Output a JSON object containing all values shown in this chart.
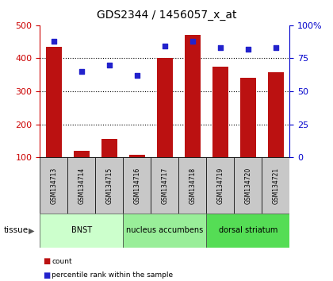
{
  "title": "GDS2344 / 1456057_x_at",
  "samples": [
    "GSM134713",
    "GSM134714",
    "GSM134715",
    "GSM134716",
    "GSM134717",
    "GSM134718",
    "GSM134719",
    "GSM134720",
    "GSM134721"
  ],
  "counts": [
    435,
    120,
    155,
    107,
    400,
    470,
    375,
    340,
    358
  ],
  "percentiles": [
    88,
    65,
    70,
    62,
    84,
    88,
    83,
    82,
    83
  ],
  "bar_color": "#bb1111",
  "dot_color": "#2222cc",
  "ylim_left": [
    100,
    500
  ],
  "ylim_right": [
    0,
    100
  ],
  "yticks_left": [
    100,
    200,
    300,
    400,
    500
  ],
  "yticks_right": [
    0,
    25,
    50,
    75,
    100
  ],
  "yticklabels_right": [
    "0",
    "25",
    "50",
    "75",
    "100%"
  ],
  "gridlines": [
    200,
    300,
    400
  ],
  "groups": [
    {
      "label": "BNST",
      "start": 0,
      "end": 3,
      "color": "#ccffcc"
    },
    {
      "label": "nucleus accumbens",
      "start": 3,
      "end": 6,
      "color": "#99ee99"
    },
    {
      "label": "dorsal striatum",
      "start": 6,
      "end": 9,
      "color": "#55dd55"
    }
  ],
  "tissue_label": "tissue",
  "legend_count": "count",
  "legend_percentile": "percentile rank within the sample",
  "tick_label_color_left": "#cc0000",
  "tick_label_color_right": "#0000cc",
  "bar_bottom": 100,
  "xticklabel_bg": "#c8c8c8",
  "fig_bg": "#ffffff"
}
